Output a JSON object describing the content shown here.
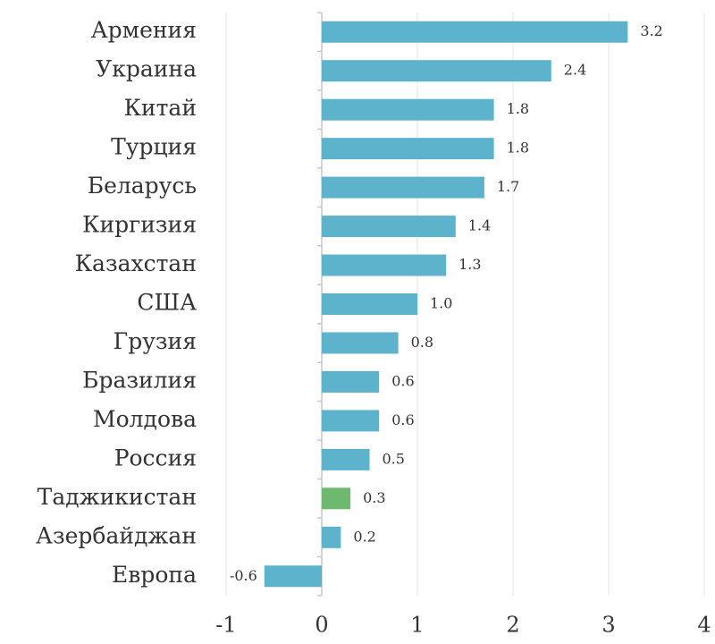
{
  "chart_data": {
    "type": "bar",
    "orientation": "horizontal",
    "categories": [
      "Армения",
      "Украина",
      "Китай",
      "Турция",
      "Беларусь",
      "Киргизия",
      "Казахстан",
      "США",
      "Грузия",
      "Бразилия",
      "Молдова",
      "Россия",
      "Таджикистан",
      "Азербайджан",
      "Европа"
    ],
    "values": [
      3.2,
      2.4,
      1.8,
      1.8,
      1.7,
      1.4,
      1.3,
      1.0,
      0.8,
      0.6,
      0.6,
      0.5,
      0.3,
      0.2,
      -0.6
    ],
    "value_labels": [
      "3.2",
      "2.4",
      "1.8",
      "1.8",
      "1.7",
      "1.4",
      "1.3",
      "1.0",
      "0.8",
      "0.6",
      "0.6",
      "0.5",
      "0.3",
      "0.2",
      "-0.6"
    ],
    "colors": [
      "#5eb3cc",
      "#5eb3cc",
      "#5eb3cc",
      "#5eb3cc",
      "#5eb3cc",
      "#5eb3cc",
      "#5eb3cc",
      "#5eb3cc",
      "#5eb3cc",
      "#5eb3cc",
      "#5eb3cc",
      "#5eb3cc",
      "#6cb96f",
      "#5eb3cc",
      "#5eb3cc"
    ],
    "xlim": [
      -1,
      4
    ],
    "xticks": [
      -1,
      0,
      1,
      2,
      3,
      4
    ],
    "grid": true
  }
}
